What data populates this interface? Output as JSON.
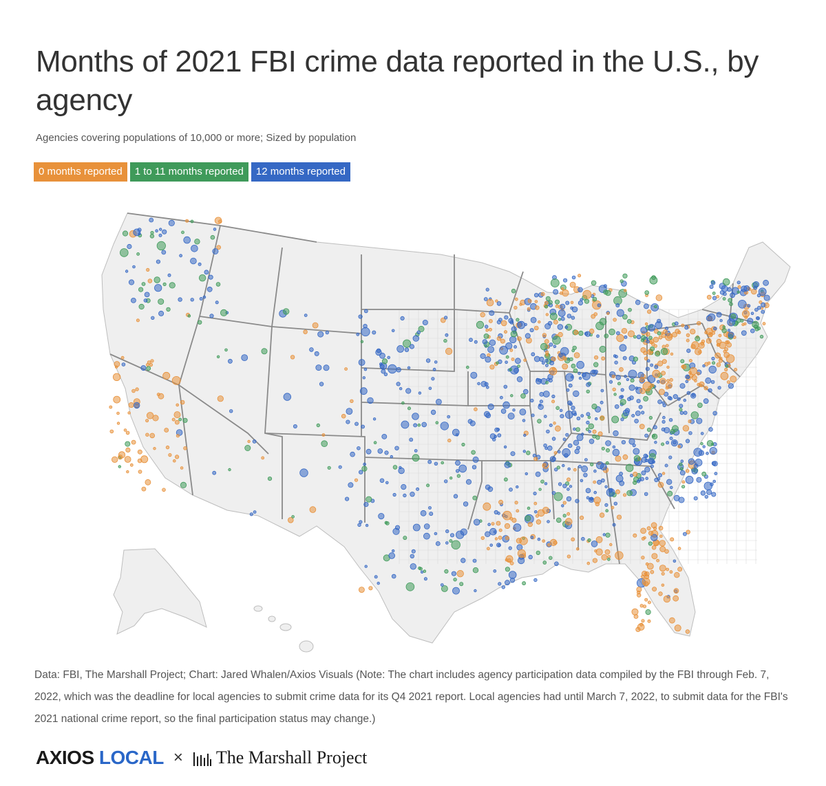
{
  "title": "Months of 2021 FBI crime data reported in the U.S., by agency",
  "subtitle": "Agencies covering populations of 10,000 or more; Sized by population",
  "legend": [
    {
      "label": "0 months reported",
      "color": "#e8913a"
    },
    {
      "label": "1 to 11 months reported",
      "color": "#3f9a5a"
    },
    {
      "label": "12 months reported",
      "color": "#3568c4"
    }
  ],
  "note": "Data: FBI, The Marshall Project; Chart: Jared Whalen/Axios Visuals (Note: The chart includes agency participation data compiled by the FBI through Feb. 7, 2022, which was the deadline for local agencies to submit crime data for its Q4 2021 report. Local agencies had until March 7, 2022, to submit data for the FBI's 2021 national crime report, so the final participation status may change.)",
  "footer": {
    "axios": "AXIOS",
    "local": "LOCAL",
    "separator": "×",
    "partner": "The Marshall Project"
  },
  "map_style": {
    "land": "#efefef",
    "state_border": "#8a8a8a",
    "county_border": "#d6d6d6"
  }
}
